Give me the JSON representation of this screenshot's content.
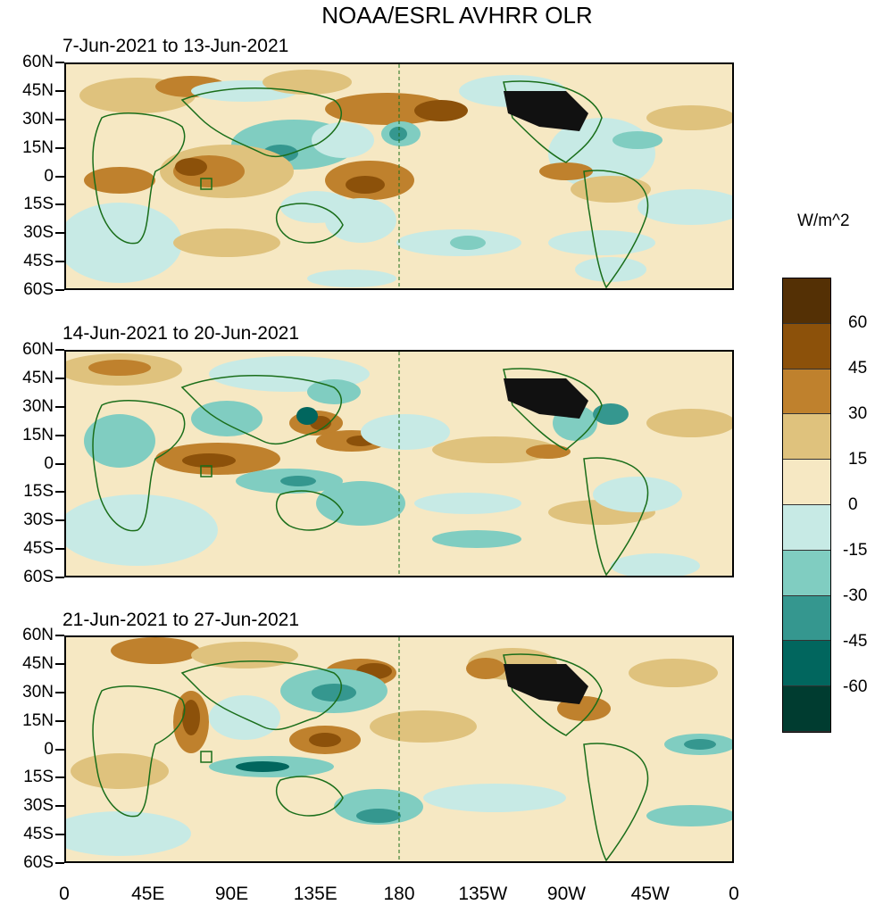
{
  "title": "NOAA/ESRL AVHRR OLR",
  "panels": [
    {
      "label": "7-Jun-2021 to 13-Jun-2021"
    },
    {
      "label": "14-Jun-2021 to 20-Jun-2021"
    },
    {
      "label": "21-Jun-2021 to 27-Jun-2021"
    }
  ],
  "y_axis_labels": [
    "60N",
    "45N",
    "30N",
    "15N",
    "0",
    "15S",
    "30S",
    "45S",
    "60S"
  ],
  "x_axis_labels": [
    "0",
    "45E",
    "90E",
    "135E",
    "180",
    "135W",
    "90W",
    "45W",
    "0"
  ],
  "colorbar": {
    "title": "W/m^2",
    "labels": [
      "60",
      "45",
      "30",
      "15",
      "0",
      "-15",
      "-30",
      "-45",
      "-60"
    ],
    "colors": [
      "#543005",
      "#8c510a",
      "#bf812d",
      "#dfc27d",
      "#f6e8c3",
      "#c7eae5",
      "#80cdc1",
      "#35978f",
      "#01665e",
      "#003c30"
    ]
  },
  "colors": {
    "coastline": "#1a6e1a",
    "background_neutral": "#f6e8c3",
    "land_mask_usa": "#111111"
  }
}
